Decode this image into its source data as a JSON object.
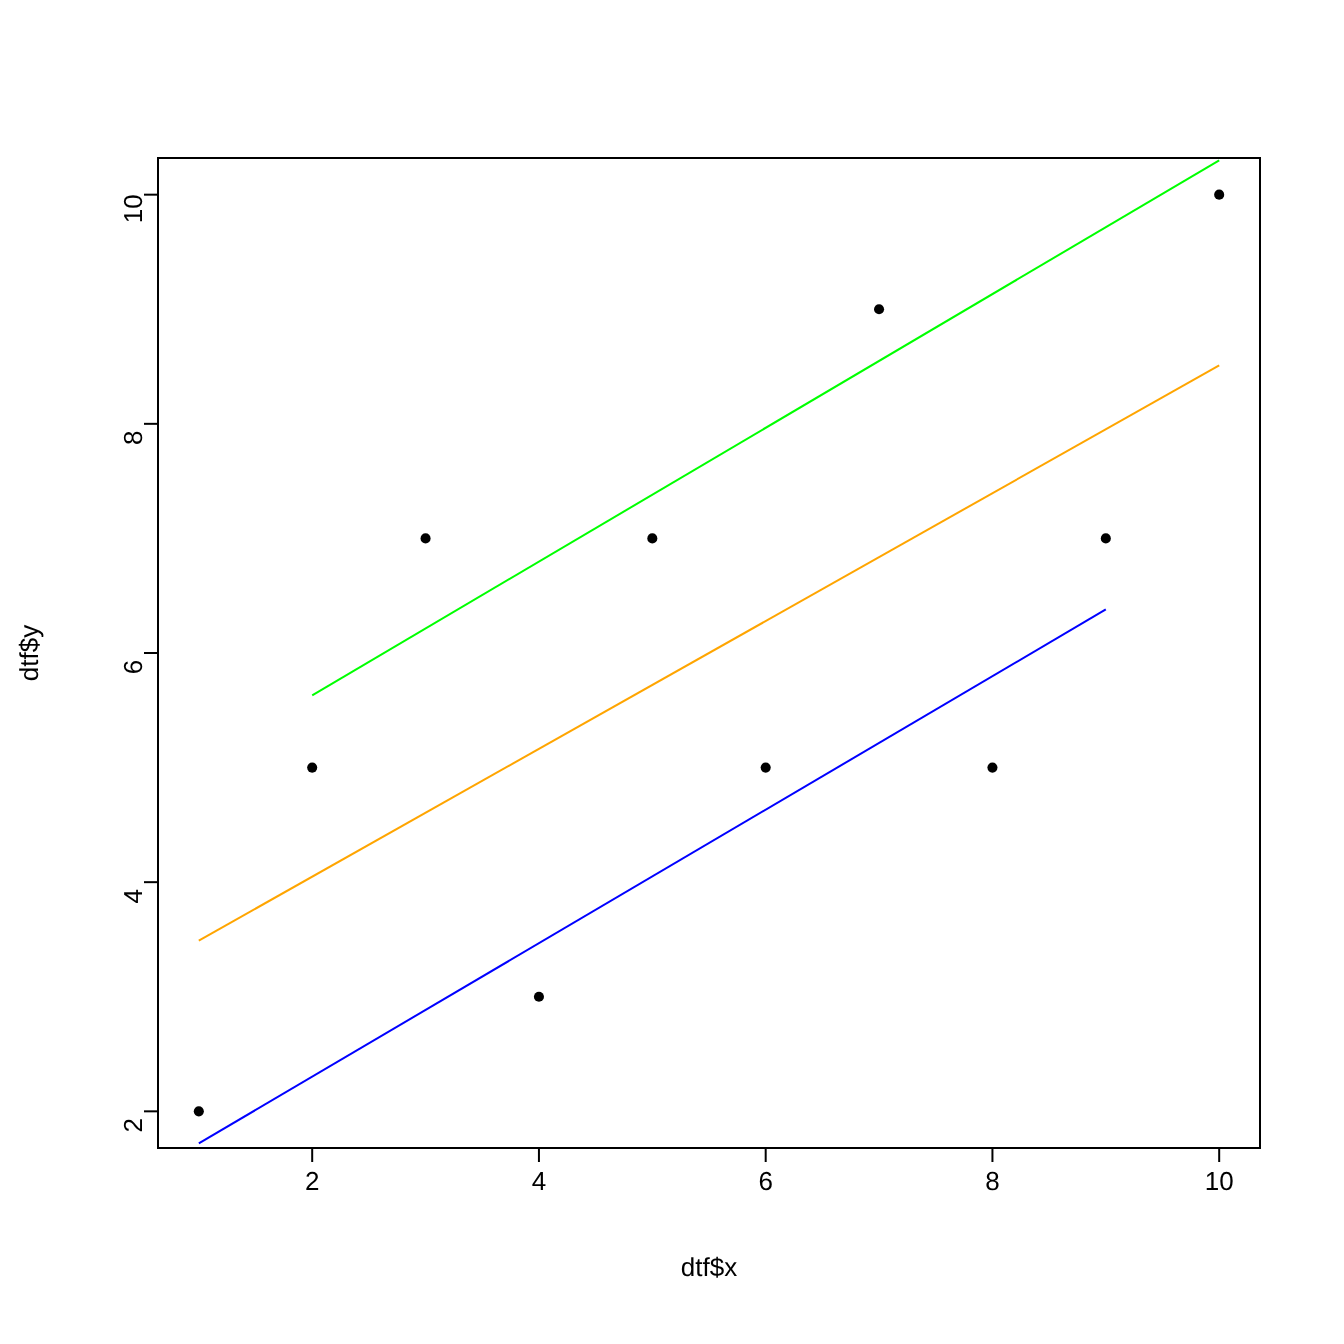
{
  "chart_data": {
    "type": "scatter",
    "xlabel": "dtf$x",
    "ylabel": "dtf$y",
    "xlim": [
      0.64,
      10.36
    ],
    "ylim": [
      1.68,
      10.32
    ],
    "xticks": [
      2,
      4,
      6,
      8,
      10
    ],
    "yticks": [
      2,
      4,
      6,
      8,
      10
    ],
    "grid": false,
    "series": [
      {
        "color": "#000000",
        "marker": "circle",
        "x": [
          1,
          2,
          3,
          4,
          5,
          6,
          7,
          8,
          9,
          10
        ],
        "values": [
          2,
          5,
          7,
          3,
          7,
          5,
          9,
          5,
          7,
          10
        ]
      },
      {
        "type": "line",
        "color": "#ffa500",
        "marker": "none",
        "x": [
          1,
          10
        ],
        "values": [
          3.49,
          8.51
        ]
      },
      {
        "type": "line",
        "color": "#00ff00",
        "marker": "none",
        "x": [
          2,
          10
        ],
        "values": [
          5.63,
          10.3
        ]
      },
      {
        "type": "line",
        "color": "#0000ff",
        "marker": "none",
        "x": [
          1,
          9
        ],
        "values": [
          1.72,
          6.38
        ]
      }
    ]
  }
}
